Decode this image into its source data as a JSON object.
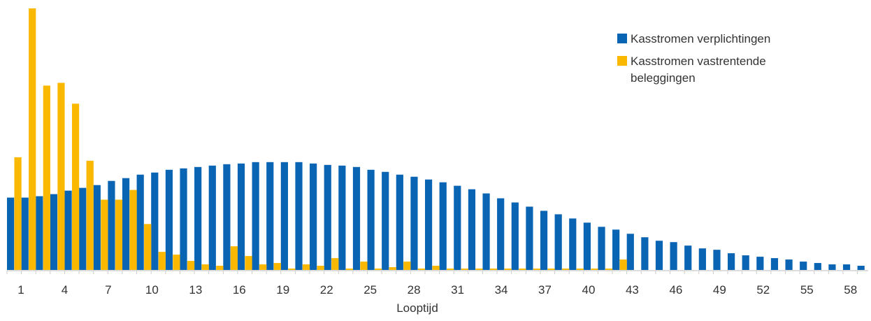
{
  "chart_data": {
    "type": "bar",
    "x_label": "Looptijd",
    "categories": [
      1,
      null,
      null,
      4,
      null,
      null,
      7,
      null,
      null,
      10,
      null,
      null,
      13,
      null,
      null,
      16,
      null,
      null,
      19,
      null,
      null,
      22,
      null,
      null,
      25,
      null,
      null,
      28,
      null,
      null,
      31,
      null,
      null,
      34,
      null,
      null,
      37,
      null,
      null,
      40,
      null,
      null,
      43,
      null,
      null,
      46,
      null,
      null,
      49,
      null,
      null,
      52,
      null,
      null,
      55,
      null,
      null,
      58,
      null,
      null
    ],
    "series": [
      {
        "name": "Kasstromen verplichtingen",
        "color": "#0a64b4",
        "values": [
          104,
          104,
          106,
          109,
          114,
          118,
          122,
          128,
          132,
          137,
          140,
          144,
          146,
          148,
          150,
          152,
          153,
          155,
          155,
          155,
          155,
          153,
          151,
          150,
          148,
          144,
          141,
          137,
          134,
          130,
          126,
          121,
          116,
          110,
          103,
          97,
          91,
          85,
          80,
          74,
          68,
          62,
          58,
          52,
          47,
          42,
          40,
          35,
          31,
          29,
          24,
          21,
          19,
          17,
          15,
          12,
          10,
          8,
          8,
          6
        ]
      },
      {
        "name": "Kasstromen vastrentende beleggingen",
        "color": "#fbb800",
        "values": [
          162,
          376,
          265,
          269,
          239,
          157,
          101,
          101,
          115,
          66,
          26,
          22,
          13,
          8,
          6,
          34,
          20,
          8,
          10,
          2,
          8,
          6,
          17,
          2,
          12,
          2,
          4,
          12,
          2,
          6,
          2,
          2,
          2,
          2,
          2,
          2,
          2,
          2,
          2,
          2,
          2,
          2,
          15,
          0,
          0,
          0,
          0,
          0,
          0,
          0,
          0,
          0,
          0,
          0,
          0,
          0,
          0,
          0,
          0,
          0
        ]
      }
    ],
    "ylim": [
      0,
      378
    ],
    "legend": "upper right"
  }
}
